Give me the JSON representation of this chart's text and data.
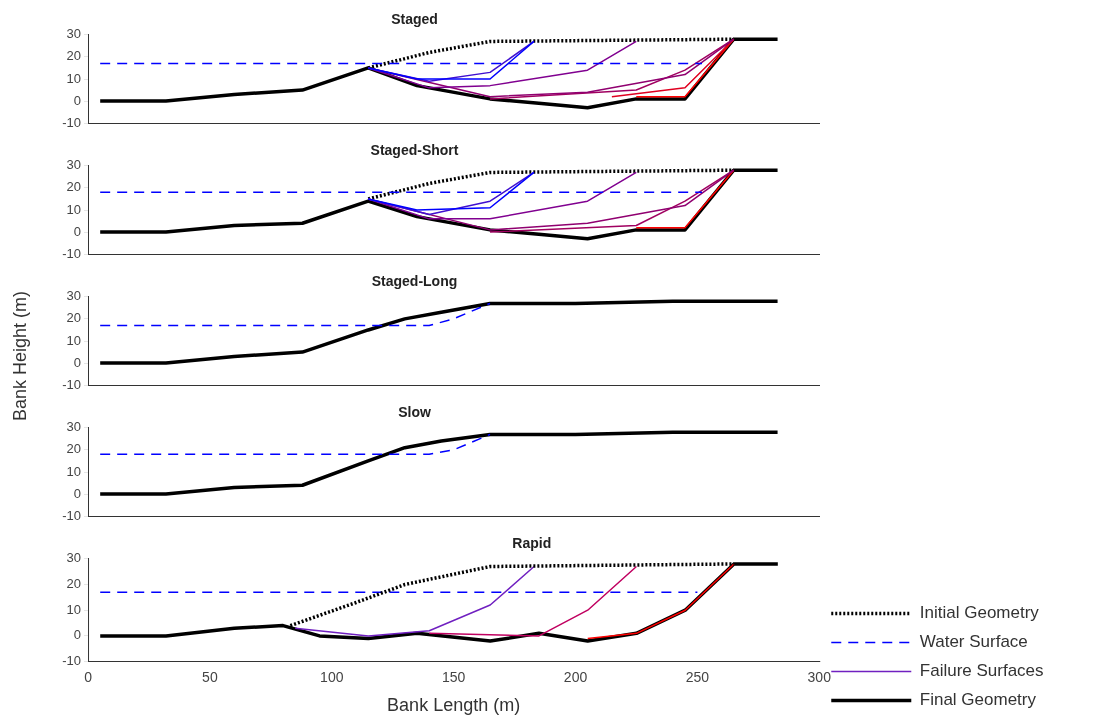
{
  "chart_data": [
    {
      "type": "line",
      "title": "Staged",
      "xlim": [
        0,
        300
      ],
      "xticks": [
        0,
        50,
        100,
        150,
        200,
        250,
        300
      ],
      "ylim": [
        -10,
        30
      ],
      "yticks": [
        -10,
        0,
        10,
        20,
        30
      ],
      "tick_labels": "y",
      "marker": "none",
      "grid": false,
      "series": [
        {
          "color": "#0000ff",
          "line_style": "dashed",
          "x": [
            5,
            252
          ],
          "values": [
            17,
            17
          ]
        },
        {
          "color": "#0000ff",
          "line_style": "solid",
          "x": [
            115,
            135,
            165,
            183
          ],
          "values": [
            15,
            10,
            10,
            27
          ]
        },
        {
          "color": "#4010d0",
          "line_style": "solid",
          "x": [
            115,
            140,
            165,
            183
          ],
          "values": [
            15,
            9,
            13,
            27
          ]
        },
        {
          "color": "#800090",
          "line_style": "solid",
          "x": [
            115,
            140,
            165,
            205,
            225
          ],
          "values": [
            15,
            6,
            7,
            14,
            27
          ]
        },
        {
          "color": "#900070",
          "line_style": "solid",
          "x": [
            115,
            165,
            205,
            245,
            265
          ],
          "values": [
            15,
            2,
            4,
            12,
            28
          ]
        },
        {
          "color": "#a00060",
          "line_style": "solid",
          "x": [
            165,
            225,
            245,
            265
          ],
          "values": [
            1,
            5,
            14,
            28
          ]
        },
        {
          "color": "#e00020",
          "line_style": "solid",
          "x": [
            215,
            245,
            265
          ],
          "values": [
            2,
            6,
            28
          ]
        },
        {
          "color": "#ff0000",
          "line_style": "solid",
          "x": [
            225,
            245,
            265
          ],
          "values": [
            2,
            2,
            28
          ]
        },
        {
          "color": "#000000",
          "line_style": "dotted",
          "x": [
            115,
            140,
            165,
            265
          ],
          "values": [
            15,
            22,
            27,
            28
          ]
        },
        {
          "color": "#000000",
          "line_style": "solid",
          "x": [
            5,
            32,
            60,
            88,
            115,
            135,
            165,
            185,
            205,
            225,
            245,
            265,
            283
          ],
          "values": [
            0,
            0,
            3,
            5,
            15,
            7,
            1,
            -1,
            -3,
            1,
            1,
            28,
            28
          ]
        }
      ]
    },
    {
      "type": "line",
      "title": "Staged-Short",
      "xlim": [
        0,
        300
      ],
      "xticks": [
        0,
        50,
        100,
        150,
        200,
        250,
        300
      ],
      "ylim": [
        -10,
        30
      ],
      "yticks": [
        -10,
        0,
        10,
        20,
        30
      ],
      "tick_labels": "y",
      "marker": "none",
      "grid": false,
      "series": [
        {
          "color": "#0000ff",
          "line_style": "dashed",
          "x": [
            5,
            252
          ],
          "values": [
            18,
            18
          ]
        },
        {
          "color": "#0000ff",
          "line_style": "solid",
          "x": [
            115,
            135,
            165,
            183
          ],
          "values": [
            15,
            10,
            11,
            27
          ]
        },
        {
          "color": "#4010d0",
          "line_style": "solid",
          "x": [
            115,
            140,
            165,
            183
          ],
          "values": [
            15,
            8,
            14,
            27
          ]
        },
        {
          "color": "#800090",
          "line_style": "solid",
          "x": [
            115,
            140,
            165,
            205,
            225
          ],
          "values": [
            15,
            6,
            6,
            14,
            27
          ]
        },
        {
          "color": "#900070",
          "line_style": "solid",
          "x": [
            115,
            165,
            205,
            245,
            265
          ],
          "values": [
            15,
            1,
            4,
            12,
            28
          ]
        },
        {
          "color": "#a00060",
          "line_style": "solid",
          "x": [
            165,
            225,
            245,
            265
          ],
          "values": [
            0,
            3,
            14,
            28
          ]
        },
        {
          "color": "#ff0000",
          "line_style": "solid",
          "x": [
            225,
            245,
            265
          ],
          "values": [
            2,
            2,
            28
          ]
        },
        {
          "color": "#000000",
          "line_style": "dotted",
          "x": [
            115,
            140,
            165,
            265
          ],
          "values": [
            15,
            22,
            27,
            28
          ]
        },
        {
          "color": "#000000",
          "line_style": "solid",
          "x": [
            5,
            32,
            60,
            88,
            115,
            135,
            165,
            185,
            205,
            225,
            245,
            265,
            283
          ],
          "values": [
            0,
            0,
            3,
            4,
            14,
            7,
            1,
            -1,
            -3,
            1,
            1,
            28,
            28
          ]
        }
      ]
    },
    {
      "type": "line",
      "title": "Staged-Long",
      "ylabel": "Bank Height (m)",
      "xlim": [
        0,
        300
      ],
      "xticks": [
        0,
        50,
        100,
        150,
        200,
        250,
        300
      ],
      "ylim": [
        -10,
        30
      ],
      "yticks": [
        -10,
        0,
        10,
        20,
        30
      ],
      "tick_labels": "y",
      "marker": "none",
      "grid": false,
      "series": [
        {
          "color": "#0000ff",
          "line_style": "dashed",
          "x": [
            5,
            140,
            150,
            165
          ],
          "values": [
            17,
            17,
            20,
            27
          ]
        },
        {
          "color": "#000000",
          "line_style": "solid",
          "x": [
            5,
            32,
            60,
            88,
            115,
            130,
            145,
            165,
            200,
            240,
            283
          ],
          "values": [
            0,
            0,
            3,
            5,
            15,
            20,
            23,
            27,
            27,
            28,
            28
          ]
        }
      ]
    },
    {
      "type": "line",
      "title": "Slow",
      "xlim": [
        0,
        300
      ],
      "xticks": [
        0,
        50,
        100,
        150,
        200,
        250,
        300
      ],
      "ylim": [
        -10,
        30
      ],
      "yticks": [
        -10,
        0,
        10,
        20,
        30
      ],
      "tick_labels": "y",
      "marker": "none",
      "grid": false,
      "series": [
        {
          "color": "#0000ff",
          "line_style": "dashed",
          "x": [
            5,
            140,
            150,
            165
          ],
          "values": [
            18,
            18,
            20,
            27
          ]
        },
        {
          "color": "#000000",
          "line_style": "solid",
          "x": [
            5,
            32,
            60,
            88,
            115,
            130,
            145,
            165,
            200,
            240,
            283
          ],
          "values": [
            0,
            0,
            3,
            4,
            15,
            21,
            24,
            27,
            27,
            28,
            28
          ]
        }
      ]
    },
    {
      "type": "line",
      "title": "Rapid",
      "xlabel": "Bank Length (m)",
      "xlim": [
        0,
        300
      ],
      "xticks": [
        0,
        50,
        100,
        150,
        200,
        250,
        300
      ],
      "ylim": [
        -10,
        30
      ],
      "yticks": [
        -10,
        0,
        10,
        20,
        30
      ],
      "marker": "none",
      "grid": false,
      "legend": "bottom right",
      "series": [
        {
          "name": "Initial Geometry",
          "color": "#000000",
          "line_style": "dotted",
          "x": [
            83,
            110,
            130,
            165,
            265
          ],
          "values": [
            4,
            13,
            20,
            27,
            28
          ]
        },
        {
          "name": "Water Surface",
          "color": "#0000ff",
          "line_style": "dashed",
          "x": [
            5,
            250
          ],
          "values": [
            17,
            17
          ]
        },
        {
          "name": "Failure Surfaces",
          "color": "#7020c0",
          "line_style": "solid",
          "x": [
            85,
            115,
            140,
            165,
            183
          ],
          "values": [
            3,
            0,
            2,
            12,
            27
          ]
        },
        {
          "color": "#c00060",
          "line_style": "solid",
          "x": [
            140,
            185,
            205,
            225
          ],
          "values": [
            1,
            0,
            10,
            27
          ]
        },
        {
          "color": "#ff0000",
          "line_style": "solid",
          "x": [
            205,
            225,
            245,
            265
          ],
          "values": [
            -1,
            1,
            10,
            28
          ]
        },
        {
          "name": "Final Geometry",
          "color": "#000000",
          "line_style": "solid",
          "x": [
            5,
            32,
            60,
            80,
            95,
            115,
            135,
            165,
            185,
            205,
            225,
            245,
            265,
            283
          ],
          "values": [
            0,
            0,
            3,
            4,
            0,
            -1,
            1,
            -2,
            1,
            -2,
            1,
            10,
            28,
            28
          ]
        }
      ]
    }
  ]
}
